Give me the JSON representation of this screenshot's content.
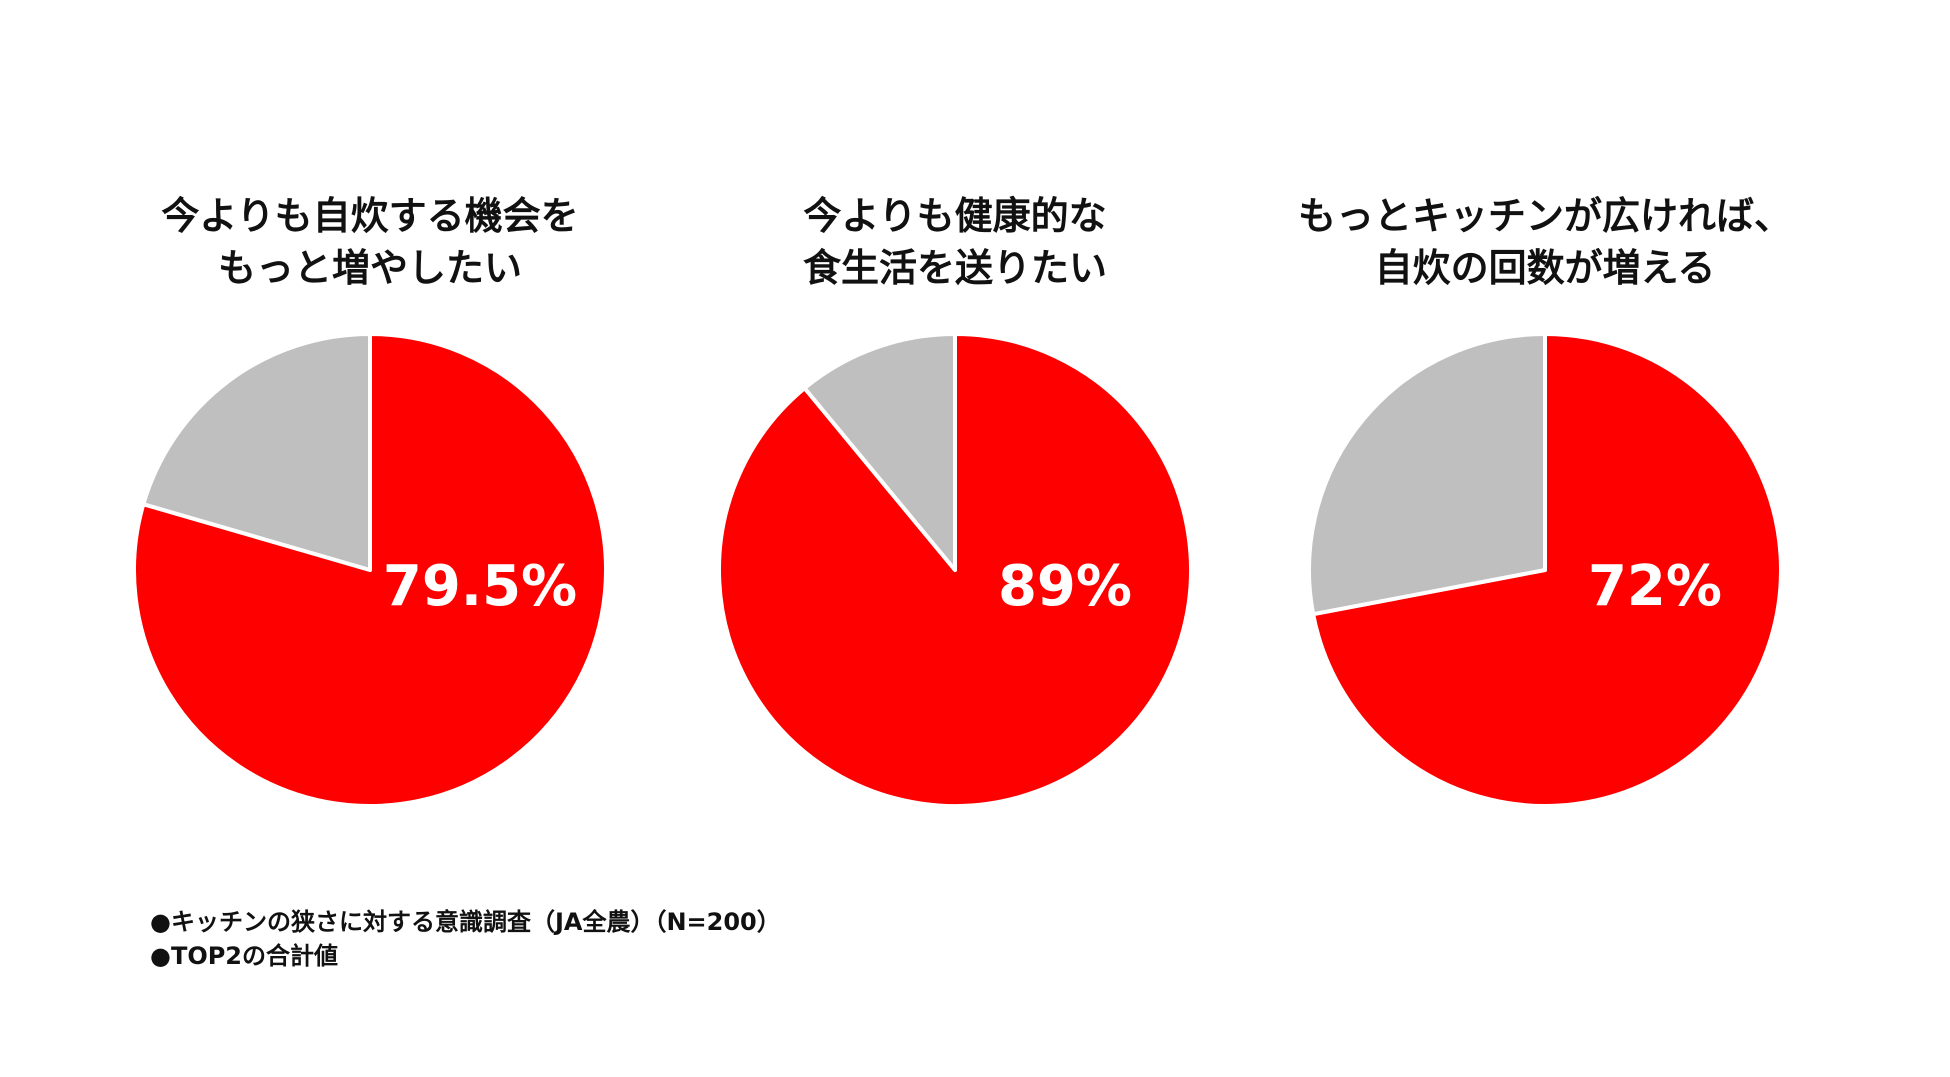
{
  "chart_data": [
    {
      "type": "pie",
      "title_lines": [
        "今よりも自炊する機会を",
        "もっと増やしたい"
      ],
      "slices": [
        {
          "value": 79.5,
          "color": "#ff0000",
          "label": "79.5%"
        },
        {
          "value": 20.5,
          "color": "#bfbfbf",
          "label": ""
        }
      ]
    },
    {
      "type": "pie",
      "title_lines": [
        "今よりも健康的な",
        "食生活を送りたい"
      ],
      "slices": [
        {
          "value": 89,
          "color": "#ff0000",
          "label": "89%"
        },
        {
          "value": 11,
          "color": "#bfbfbf",
          "label": ""
        }
      ]
    },
    {
      "type": "pie",
      "title_lines": [
        "もっとキッチンが広ければ、",
        "自炊の回数が増える"
      ],
      "slices": [
        {
          "value": 72,
          "color": "#ff0000",
          "label": "72%"
        },
        {
          "value": 28,
          "color": "#bfbfbf",
          "label": ""
        }
      ]
    }
  ],
  "notes": [
    "●キッチンの狭さに対する意識調査（JA全農）（N=200）",
    "●TOP2の合計値"
  ]
}
